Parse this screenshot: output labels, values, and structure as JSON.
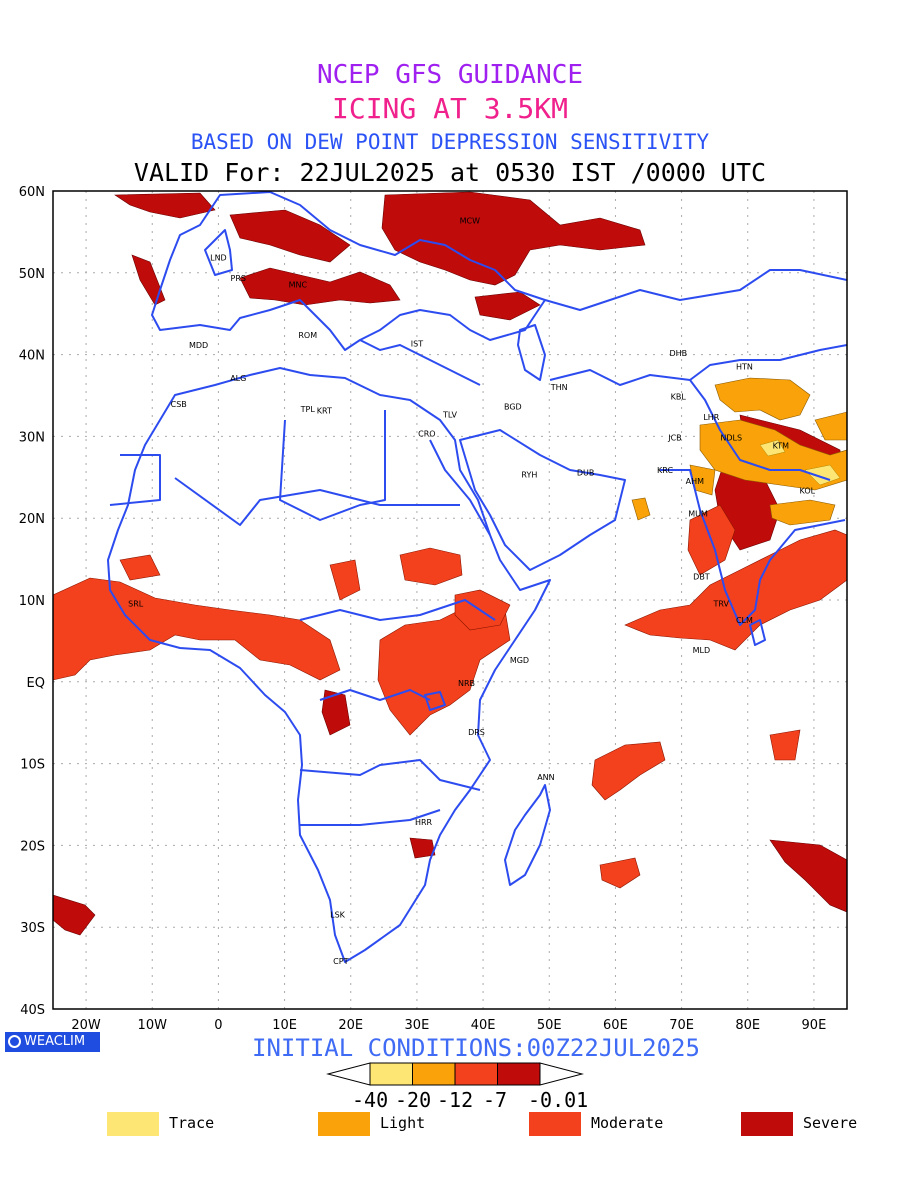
{
  "titles": {
    "line1": "NCEP GFS GUIDANCE",
    "line2": "ICING AT 3.5KM",
    "line3": "BASED ON DEW POINT DEPRESSION SENSITIVITY",
    "line4": "VALID For: 22JUL2025 at 0530 IST /0000 UTC"
  },
  "axes": {
    "lat_labels": [
      "60N",
      "50N",
      "40N",
      "30N",
      "20N",
      "10N",
      "EQ",
      "10S",
      "20S",
      "30S",
      "40S"
    ],
    "lon_labels": [
      "20W",
      "10W",
      "0",
      "10E",
      "20E",
      "30E",
      "40E",
      "50E",
      "60E",
      "70E",
      "80E",
      "90E"
    ]
  },
  "cities": [
    {
      "name": "MCW",
      "lon": 38,
      "lat": 56
    },
    {
      "name": "LND",
      "lon": 0,
      "lat": 51.5
    },
    {
      "name": "PRS",
      "lon": 3,
      "lat": 49
    },
    {
      "name": "MNC",
      "lon": 12,
      "lat": 48.2
    },
    {
      "name": "ROM",
      "lon": 13.5,
      "lat": 42
    },
    {
      "name": "MDD",
      "lon": -3,
      "lat": 40.8
    },
    {
      "name": "IST",
      "lon": 30,
      "lat": 41
    },
    {
      "name": "ALG",
      "lon": 3,
      "lat": 36.8
    },
    {
      "name": "CSB",
      "lon": -6,
      "lat": 33.6
    },
    {
      "name": "TPL",
      "lon": 13.5,
      "lat": 33
    },
    {
      "name": "KRT",
      "lon": 16,
      "lat": 32.8
    },
    {
      "name": "THN",
      "lon": 51.5,
      "lat": 35.7
    },
    {
      "name": "BGD",
      "lon": 44.5,
      "lat": 33.3
    },
    {
      "name": "TLV",
      "lon": 35,
      "lat": 32.3
    },
    {
      "name": "CRO",
      "lon": 31.5,
      "lat": 30
    },
    {
      "name": "RYH",
      "lon": 47,
      "lat": 25
    },
    {
      "name": "DUB",
      "lon": 55.5,
      "lat": 25.2
    },
    {
      "name": "DHB",
      "lon": 69.5,
      "lat": 39.8
    },
    {
      "name": "HTN",
      "lon": 79.5,
      "lat": 38.2
    },
    {
      "name": "KBL",
      "lon": 69.5,
      "lat": 34.5
    },
    {
      "name": "LHR",
      "lon": 74.5,
      "lat": 32
    },
    {
      "name": "JCB",
      "lon": 69,
      "lat": 29.5
    },
    {
      "name": "NDLS",
      "lon": 77.5,
      "lat": 29.5
    },
    {
      "name": "KTM",
      "lon": 85,
      "lat": 28.5
    },
    {
      "name": "KRC",
      "lon": 67.5,
      "lat": 25.5
    },
    {
      "name": "AHM",
      "lon": 72,
      "lat": 24.2
    },
    {
      "name": "KOL",
      "lon": 89,
      "lat": 23
    },
    {
      "name": "MUM",
      "lon": 72.5,
      "lat": 20.2
    },
    {
      "name": "DBT",
      "lon": 73,
      "lat": 12.5
    },
    {
      "name": "TRV",
      "lon": 76,
      "lat": 9.2
    },
    {
      "name": "CLM",
      "lon": 79.5,
      "lat": 7.2
    },
    {
      "name": "MLD",
      "lon": 73,
      "lat": 3.5
    },
    {
      "name": "SRL",
      "lon": -12.5,
      "lat": 9.2
    },
    {
      "name": "MGD",
      "lon": 45.5,
      "lat": 2.3
    },
    {
      "name": "NRB",
      "lon": 37.5,
      "lat": -0.5
    },
    {
      "name": "DRS",
      "lon": 39,
      "lat": -6.5
    },
    {
      "name": "ANN",
      "lon": 49.5,
      "lat": -12
    },
    {
      "name": "HRR",
      "lon": 31,
      "lat": -17.5
    },
    {
      "name": "LSK",
      "lon": 18,
      "lat": -28.8
    },
    {
      "name": "CPT",
      "lon": 18.5,
      "lat": -34.5
    }
  ],
  "footer": {
    "brand": "WEACLIM",
    "initial_conditions": "INITIAL CONDITIONS:00Z22JUL2025"
  },
  "colorbar": {
    "colors": [
      "#fde674",
      "#f9a20a",
      "#f4411d",
      "#c00b0b"
    ],
    "labels": [
      "-40",
      "-20",
      "-12",
      "-7",
      "-0.01"
    ]
  },
  "legend": [
    {
      "label": "Trace",
      "color": "#fde674"
    },
    {
      "label": "Light",
      "color": "#f9a20a"
    },
    {
      "label": "Moderate",
      "color": "#f4411d"
    },
    {
      "label": "Severe",
      "color": "#c00b0b"
    }
  ]
}
